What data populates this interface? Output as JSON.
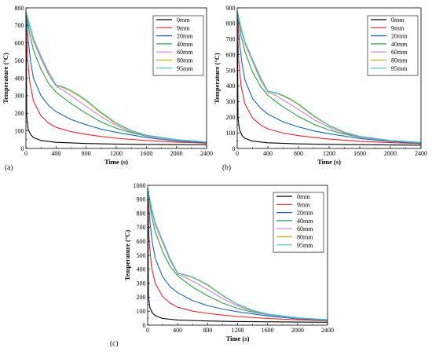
{
  "figure": {
    "panels": [
      {
        "label": "(a)"
      },
      {
        "label": "(b)"
      },
      {
        "label": "(c)"
      }
    ]
  },
  "chart_data": [
    {
      "type": "line",
      "panel_label": "(a)",
      "xlabel": "Time (s)",
      "ylabel": "Temperature (°C)",
      "xlim": [
        0,
        2400
      ],
      "ylim": [
        0,
        800
      ],
      "xticks": [
        0,
        400,
        800,
        1200,
        1600,
        2000,
        2400
      ],
      "yticks": [
        0,
        100,
        200,
        300,
        400,
        500,
        600,
        700,
        800
      ],
      "grid": false,
      "legend_position": "top-right",
      "colors": [
        "#000000",
        "#e8242b",
        "#1665c1",
        "#27a346",
        "#c57fe0",
        "#d9a400",
        "#36c2c9"
      ],
      "series": [
        {
          "name": "0mm",
          "x": [
            0,
            10,
            30,
            60,
            100,
            200,
            400,
            800,
            1200,
            1600,
            2000,
            2400
          ],
          "y": [
            780,
            180,
            110,
            80,
            62,
            45,
            35,
            28,
            25,
            23,
            22,
            21
          ]
        },
        {
          "name": "9mm",
          "x": [
            0,
            20,
            50,
            100,
            200,
            300,
            400,
            600,
            800,
            1000,
            1200,
            1600,
            2000,
            2400
          ],
          "y": [
            780,
            520,
            380,
            270,
            185,
            145,
            120,
            95,
            80,
            68,
            58,
            45,
            36,
            30
          ]
        },
        {
          "name": "20mm",
          "x": [
            0,
            30,
            60,
            100,
            200,
            300,
            400,
            600,
            800,
            1000,
            1200,
            1600,
            2000,
            2400
          ],
          "y": [
            780,
            620,
            500,
            400,
            300,
            245,
            210,
            165,
            135,
            110,
            92,
            62,
            42,
            33
          ]
        },
        {
          "name": "40mm",
          "x": [
            0,
            50,
            100,
            200,
            300,
            400,
            600,
            800,
            1000,
            1200,
            1400,
            1600,
            2000,
            2400
          ],
          "y": [
            780,
            650,
            560,
            450,
            370,
            320,
            255,
            200,
            150,
            115,
            90,
            70,
            48,
            36
          ]
        },
        {
          "name": "60mm",
          "x": [
            0,
            50,
            100,
            200,
            300,
            400,
            500,
            600,
            700,
            800,
            1000,
            1200,
            1400,
            1600,
            2000,
            2400
          ],
          "y": [
            780,
            690,
            610,
            510,
            420,
            355,
            330,
            300,
            270,
            240,
            180,
            130,
            95,
            72,
            48,
            36
          ]
        },
        {
          "name": "80mm",
          "x": [
            0,
            50,
            100,
            200,
            300,
            400,
            500,
            600,
            700,
            800,
            1000,
            1200,
            1400,
            1600,
            2000,
            2400
          ],
          "y": [
            780,
            700,
            620,
            520,
            430,
            360,
            345,
            325,
            300,
            270,
            200,
            140,
            100,
            75,
            50,
            37
          ]
        },
        {
          "name": "95mm",
          "x": [
            0,
            50,
            100,
            200,
            300,
            400,
            500,
            600,
            700,
            800,
            1000,
            1200,
            1400,
            1600,
            2000,
            2400
          ],
          "y": [
            780,
            705,
            625,
            525,
            435,
            362,
            350,
            330,
            305,
            275,
            205,
            145,
            102,
            76,
            50,
            37
          ]
        }
      ]
    },
    {
      "type": "line",
      "panel_label": "(b)",
      "xlabel": "Time (s)",
      "ylabel": "Temperature (°C)",
      "xlim": [
        0,
        2400
      ],
      "ylim": [
        0,
        900
      ],
      "xticks": [
        0,
        400,
        800,
        1200,
        1600,
        2000,
        2400
      ],
      "yticks": [
        0,
        100,
        200,
        300,
        400,
        500,
        600,
        700,
        800,
        900
      ],
      "grid": false,
      "legend_position": "top-right",
      "colors": [
        "#000000",
        "#e8242b",
        "#1665c1",
        "#27a346",
        "#c57fe0",
        "#d9a400",
        "#36c2c9"
      ],
      "series": [
        {
          "name": "0mm",
          "x": [
            0,
            10,
            30,
            60,
            100,
            200,
            400,
            800,
            1200,
            1600,
            2000,
            2400
          ],
          "y": [
            880,
            190,
            120,
            85,
            65,
            47,
            36,
            29,
            26,
            24,
            22,
            21
          ]
        },
        {
          "name": "9mm",
          "x": [
            0,
            20,
            50,
            100,
            200,
            300,
            400,
            600,
            800,
            1000,
            1200,
            1600,
            2000,
            2400
          ],
          "y": [
            880,
            560,
            400,
            285,
            195,
            152,
            125,
            98,
            82,
            70,
            60,
            46,
            37,
            31
          ]
        },
        {
          "name": "20mm",
          "x": [
            0,
            30,
            60,
            100,
            200,
            300,
            400,
            600,
            800,
            1000,
            1200,
            1600,
            2000,
            2400
          ],
          "y": [
            880,
            680,
            550,
            440,
            320,
            260,
            220,
            170,
            138,
            112,
            94,
            64,
            44,
            34
          ]
        },
        {
          "name": "40mm",
          "x": [
            0,
            50,
            100,
            200,
            300,
            400,
            600,
            800,
            1000,
            1200,
            1400,
            1600,
            2000,
            2400
          ],
          "y": [
            880,
            720,
            620,
            490,
            400,
            340,
            265,
            205,
            155,
            118,
            92,
            72,
            49,
            37
          ]
        },
        {
          "name": "60mm",
          "x": [
            0,
            50,
            100,
            200,
            300,
            400,
            500,
            600,
            700,
            800,
            1000,
            1200,
            1400,
            1600,
            2000,
            2400
          ],
          "y": [
            880,
            760,
            670,
            555,
            440,
            360,
            340,
            310,
            280,
            250,
            185,
            135,
            98,
            74,
            49,
            37
          ]
        },
        {
          "name": "80mm",
          "x": [
            0,
            50,
            100,
            200,
            300,
            400,
            500,
            600,
            700,
            800,
            1000,
            1200,
            1400,
            1600,
            2000,
            2400
          ],
          "y": [
            880,
            770,
            680,
            565,
            455,
            365,
            355,
            335,
            310,
            280,
            205,
            145,
            103,
            77,
            51,
            38
          ]
        },
        {
          "name": "95mm",
          "x": [
            0,
            50,
            100,
            200,
            300,
            400,
            500,
            600,
            700,
            800,
            1000,
            1200,
            1400,
            1600,
            2000,
            2400
          ],
          "y": [
            880,
            775,
            685,
            570,
            460,
            367,
            358,
            340,
            315,
            285,
            210,
            148,
            105,
            78,
            51,
            38
          ]
        }
      ]
    },
    {
      "type": "line",
      "panel_label": "(c)",
      "xlabel": "Time (s)",
      "ylabel": "Temperature (°C)",
      "xlim": [
        0,
        2400
      ],
      "ylim": [
        0,
        1000
      ],
      "xticks": [
        0,
        400,
        800,
        1200,
        1600,
        2000,
        2400
      ],
      "yticks": [
        0,
        100,
        200,
        300,
        400,
        500,
        600,
        700,
        800,
        900,
        1000
      ],
      "grid": false,
      "legend_position": "top-right",
      "colors": [
        "#000000",
        "#e8242b",
        "#1665c1",
        "#27a346",
        "#c57fe0",
        "#d9a400",
        "#36c2c9"
      ],
      "series": [
        {
          "name": "0mm",
          "x": [
            0,
            10,
            30,
            60,
            100,
            200,
            400,
            800,
            1200,
            1600,
            2000,
            2400
          ],
          "y": [
            980,
            200,
            125,
            90,
            68,
            48,
            37,
            30,
            26,
            24,
            22,
            21
          ]
        },
        {
          "name": "9mm",
          "x": [
            0,
            20,
            50,
            100,
            200,
            300,
            400,
            600,
            800,
            1000,
            1200,
            1600,
            2000,
            2400
          ],
          "y": [
            980,
            600,
            420,
            300,
            205,
            158,
            128,
            100,
            84,
            72,
            62,
            48,
            38,
            32
          ]
        },
        {
          "name": "20mm",
          "x": [
            0,
            30,
            60,
            100,
            200,
            300,
            400,
            600,
            800,
            1000,
            1200,
            1600,
            2000,
            2400
          ],
          "y": [
            980,
            740,
            600,
            480,
            345,
            275,
            232,
            175,
            140,
            115,
            96,
            66,
            45,
            35
          ]
        },
        {
          "name": "40mm",
          "x": [
            0,
            50,
            100,
            200,
            300,
            400,
            600,
            800,
            1000,
            1200,
            1400,
            1600,
            2000,
            2400
          ],
          "y": [
            980,
            790,
            670,
            525,
            420,
            352,
            272,
            210,
            158,
            120,
            94,
            74,
            50,
            38
          ]
        },
        {
          "name": "60mm",
          "x": [
            0,
            50,
            100,
            200,
            300,
            400,
            500,
            600,
            700,
            800,
            1000,
            1200,
            1400,
            1600,
            2000,
            2400
          ],
          "y": [
            980,
            830,
            720,
            590,
            460,
            365,
            342,
            315,
            285,
            255,
            190,
            138,
            100,
            76,
            50,
            38
          ]
        },
        {
          "name": "80mm",
          "x": [
            0,
            50,
            100,
            200,
            300,
            400,
            500,
            600,
            700,
            800,
            1000,
            1200,
            1400,
            1600,
            2000,
            2400
          ],
          "y": [
            980,
            840,
            730,
            600,
            470,
            370,
            358,
            340,
            315,
            285,
            210,
            148,
            105,
            79,
            52,
            39
          ]
        },
        {
          "name": "95mm",
          "x": [
            0,
            50,
            100,
            200,
            300,
            400,
            500,
            600,
            700,
            800,
            1000,
            1200,
            1400,
            1600,
            2000,
            2400
          ],
          "y": [
            980,
            845,
            735,
            605,
            475,
            372,
            360,
            343,
            318,
            290,
            214,
            150,
            107,
            80,
            52,
            39
          ]
        }
      ]
    }
  ]
}
